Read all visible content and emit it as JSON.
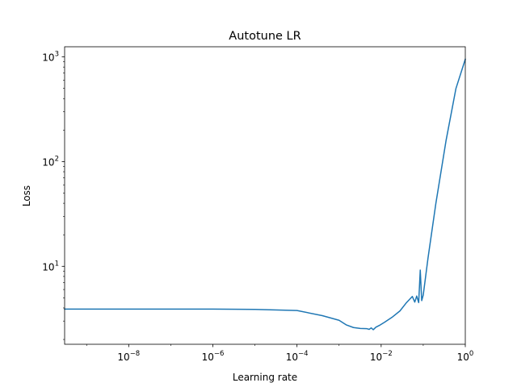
{
  "chart_data": {
    "type": "line",
    "title": "Autotune LR",
    "xlabel": "Learning rate",
    "ylabel": "Loss",
    "xscale": "log",
    "yscale": "log",
    "xlim": [
      3e-10,
      1
    ],
    "ylim": [
      1.8,
      1250
    ],
    "grid": false,
    "x_ticks": [
      {
        "value": 1e-08,
        "base": "10",
        "exp": "−8"
      },
      {
        "value": 1e-06,
        "base": "10",
        "exp": "−6"
      },
      {
        "value": 0.0001,
        "base": "10",
        "exp": "−4"
      },
      {
        "value": 0.01,
        "base": "10",
        "exp": "−2"
      },
      {
        "value": 1,
        "base": "10",
        "exp": "0"
      }
    ],
    "y_ticks": [
      {
        "value": 10,
        "base": "10",
        "exp": "1"
      },
      {
        "value": 100,
        "base": "10",
        "exp": "2"
      },
      {
        "value": 1000,
        "base": "10",
        "exp": "3"
      }
    ],
    "series": [
      {
        "color": "#1f77b4",
        "x": [
          3e-10,
          1e-09,
          1e-08,
          1e-07,
          1e-06,
          1e-05,
          0.0001,
          0.0004,
          0.001,
          0.0015,
          0.0022,
          0.0032,
          0.0045,
          0.0052,
          0.0058,
          0.0065,
          0.0075,
          0.009,
          0.012,
          0.018,
          0.028,
          0.04,
          0.055,
          0.063,
          0.07,
          0.078,
          0.085,
          0.092,
          0.1,
          0.13,
          0.2,
          0.35,
          0.6,
          1
        ],
        "y": [
          3.9,
          3.9,
          3.9,
          3.9,
          3.9,
          3.88,
          3.78,
          3.38,
          3.05,
          2.75,
          2.6,
          2.55,
          2.54,
          2.5,
          2.58,
          2.48,
          2.62,
          2.72,
          2.92,
          3.25,
          3.75,
          4.5,
          5.15,
          4.55,
          5.2,
          4.5,
          9.2,
          4.7,
          5.3,
          12,
          40,
          160,
          500,
          950
        ]
      }
    ]
  }
}
